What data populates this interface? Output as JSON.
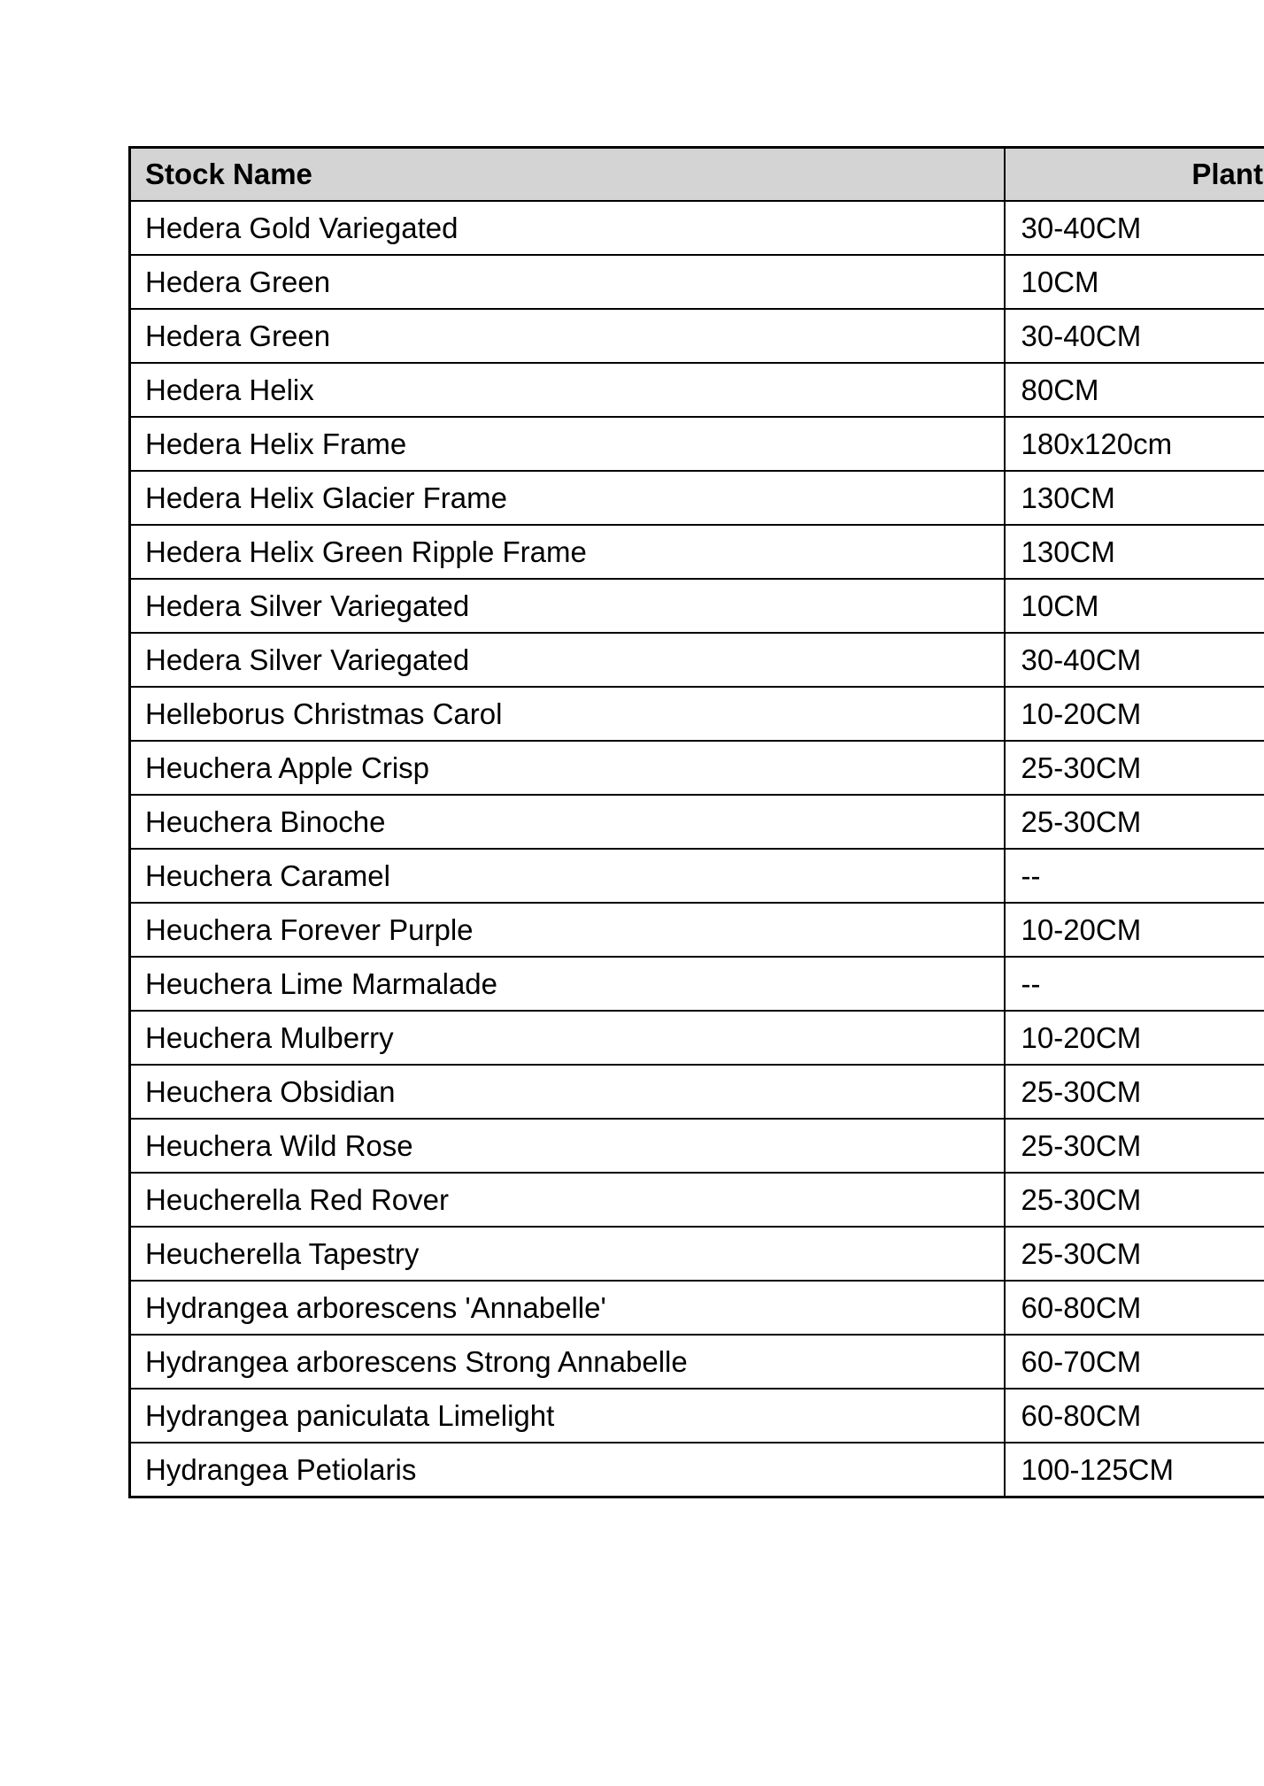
{
  "page": {
    "background": "#ffffff"
  },
  "table": {
    "header": {
      "stock_name_label": "Stock Name",
      "plant_label": "Plant"
    },
    "rows": [
      {
        "stock_name": "Hedera Gold Variegated",
        "plant_size": "30-40CM"
      },
      {
        "stock_name": "Hedera Green",
        "plant_size": "10CM"
      },
      {
        "stock_name": "Hedera Green",
        "plant_size": "30-40CM"
      },
      {
        "stock_name": "Hedera Helix",
        "plant_size": "80CM"
      },
      {
        "stock_name": "Hedera Helix Frame",
        "plant_size": "180x120cm"
      },
      {
        "stock_name": "Hedera Helix Glacier Frame",
        "plant_size": "130CM"
      },
      {
        "stock_name": "Hedera Helix Green Ripple Frame",
        "plant_size": "130CM"
      },
      {
        "stock_name": "Hedera Silver Variegated",
        "plant_size": "10CM"
      },
      {
        "stock_name": "Hedera Silver Variegated",
        "plant_size": "30-40CM"
      },
      {
        "stock_name": "Helleborus Christmas Carol",
        "plant_size": "10-20CM"
      },
      {
        "stock_name": "Heuchera Apple Crisp",
        "plant_size": "25-30CM"
      },
      {
        "stock_name": "Heuchera Binoche",
        "plant_size": "25-30CM"
      },
      {
        "stock_name": "Heuchera Caramel",
        "plant_size": "--"
      },
      {
        "stock_name": "Heuchera Forever Purple",
        "plant_size": "10-20CM"
      },
      {
        "stock_name": "Heuchera Lime Marmalade",
        "plant_size": "--"
      },
      {
        "stock_name": "Heuchera Mulberry",
        "plant_size": "10-20CM"
      },
      {
        "stock_name": "Heuchera Obsidian",
        "plant_size": "25-30CM"
      },
      {
        "stock_name": "Heuchera Wild Rose",
        "plant_size": "25-30CM"
      },
      {
        "stock_name": "Heucherella Red Rover",
        "plant_size": "25-30CM"
      },
      {
        "stock_name": "Heucherella Tapestry",
        "plant_size": "25-30CM"
      },
      {
        "stock_name": "Hydrangea arborescens 'Annabelle'",
        "plant_size": "60-80CM"
      },
      {
        "stock_name": "Hydrangea arborescens Strong Annabelle",
        "plant_size": "60-70CM"
      },
      {
        "stock_name": "Hydrangea paniculata Limelight",
        "plant_size": "60-80CM"
      },
      {
        "stock_name": "Hydrangea Petiolaris",
        "plant_size": "100-125CM"
      }
    ],
    "colors": {
      "header_bg": "#d4d4d4",
      "border": "#000000",
      "text": "#000000"
    }
  }
}
